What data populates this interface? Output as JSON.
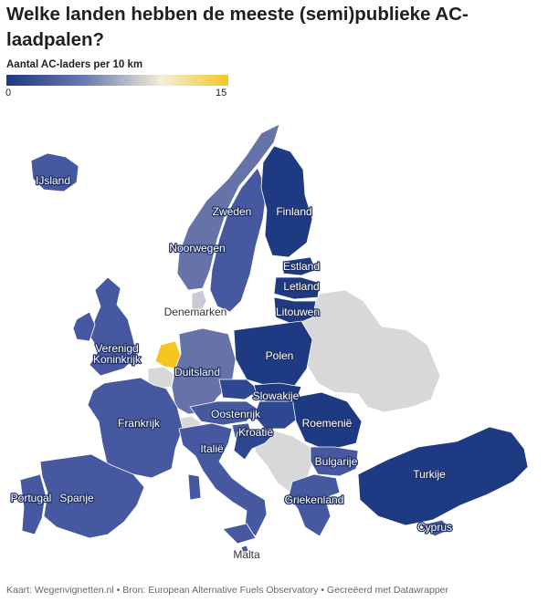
{
  "title": "Welke landen hebben de meeste (semi)publieke AC-laadpalen?",
  "legend": {
    "title": "Aantal AC-laders per 10 km",
    "min": "0",
    "max": "15",
    "colors": [
      "#1e3a80",
      "#6a79b0",
      "#f3efd9",
      "#f6c520"
    ]
  },
  "colors": {
    "darkest": "#1d3a83",
    "dark": "#2e4791",
    "mid": "#4658a0",
    "medium_light": "#6573a8",
    "light": "#7580b0",
    "highest": "#f6c520",
    "high_light": "#c8c8d6",
    "no_data": "#d8d8d8",
    "border": "#ffffff"
  },
  "labels": {
    "ijsland": "IJsland",
    "zweden": "Zweden",
    "finland": "Finland",
    "noorwegen": "Noorwegen",
    "estland": "Estland",
    "letland": "Letland",
    "denemarken": "Denemarken",
    "litouwen": "Litouwen",
    "vk": "Verenigd Koninkrijk",
    "polen": "Polen",
    "duitsland": "Duitsland",
    "slowakije": "Slowakije",
    "frankrijk": "Frankrijk",
    "oostenrijk": "Oostenrijk",
    "roemenie": "Roemenië",
    "kroatie": "Kroatië",
    "italie": "Italië",
    "bulgarije": "Bulgarije",
    "turkije": "Turkije",
    "portugal": "Portugal",
    "spanje": "Spanje",
    "griekenland": "Griekenland",
    "cyprus": "Cyprus",
    "malta": "Malta"
  },
  "footer": "Kaart: Wegenvignetten.nl • Bron: European Alternative Fuels Observatory • Gecreëerd met Datawrapper"
}
